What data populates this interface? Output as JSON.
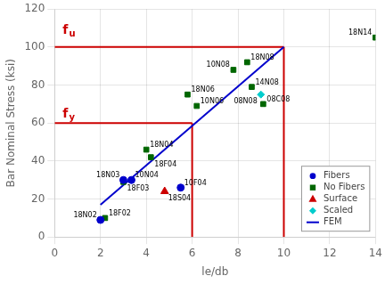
{
  "chart_data": {
    "type": "scatter",
    "xlabel": "le/db",
    "ylabel": "Bar Nominal Stress (ksi)",
    "xlim": [
      0,
      14
    ],
    "ylim": [
      0,
      120
    ],
    "xticks": [
      0,
      2,
      4,
      6,
      8,
      10,
      12,
      14
    ],
    "yticks": [
      0,
      20,
      40,
      60,
      80,
      100,
      120
    ],
    "grid": true,
    "legend": "lower right",
    "series": [
      {
        "name": "Fibers",
        "color": "#0000CC",
        "marker": "circle",
        "x": [
          2.0,
          3.0,
          3.35,
          5.5
        ],
        "values": [
          9,
          30,
          30,
          26
        ],
        "labels": [
          "18N02",
          "18N03",
          "10N04",
          "10F04"
        ]
      },
      {
        "name": "No Fibers",
        "color": "#006600",
        "marker": "square",
        "x": [
          2.2,
          3.0,
          4.0,
          4.2,
          5.8,
          6.2,
          7.8,
          8.4,
          8.6,
          9.1,
          14.0
        ],
        "values": [
          10,
          29,
          46,
          42,
          75,
          69,
          88,
          92,
          79,
          70,
          105
        ],
        "labels": [
          "18F02",
          "18F03",
          "18N04",
          "18F04",
          "18N06",
          "10N06",
          "10N08",
          "18N08",
          "14N08",
          "08C08",
          "18N14"
        ]
      },
      {
        "name": "Surface",
        "color": "#CC0000",
        "marker": "triangle",
        "x": [
          4.8
        ],
        "values": [
          24
        ],
        "labels": [
          "18S04"
        ]
      },
      {
        "name": "Scaled",
        "color": "#00CCCC",
        "marker": "diamond",
        "x": [
          9.0
        ],
        "values": [
          75
        ],
        "labels": [
          "08N08"
        ]
      },
      {
        "name": "FEM",
        "type": "line",
        "color": "#0000CC",
        "x": [
          2.0,
          10.0
        ],
        "values": [
          17,
          100
        ]
      },
      {
        "type": "line",
        "color": "#CC0000",
        "x": [
          0,
          10
        ],
        "values": [
          100,
          100
        ]
      },
      {
        "type": "line",
        "color": "#CC0000",
        "x": [
          10,
          10
        ],
        "values": [
          0,
          100
        ]
      },
      {
        "type": "line",
        "color": "#CC0000",
        "x": [
          0,
          6
        ],
        "values": [
          60,
          60
        ]
      },
      {
        "type": "line",
        "color": "#CC0000",
        "x": [
          6,
          6
        ],
        "values": [
          0,
          60
        ]
      }
    ],
    "annotations": [
      {
        "text": "f",
        "subscript": "u",
        "x": 0.35,
        "y": 107,
        "color": "#CC0000"
      },
      {
        "text": "f",
        "subscript": "y",
        "x": 0.35,
        "y": 63,
        "color": "#CC0000"
      }
    ]
  }
}
